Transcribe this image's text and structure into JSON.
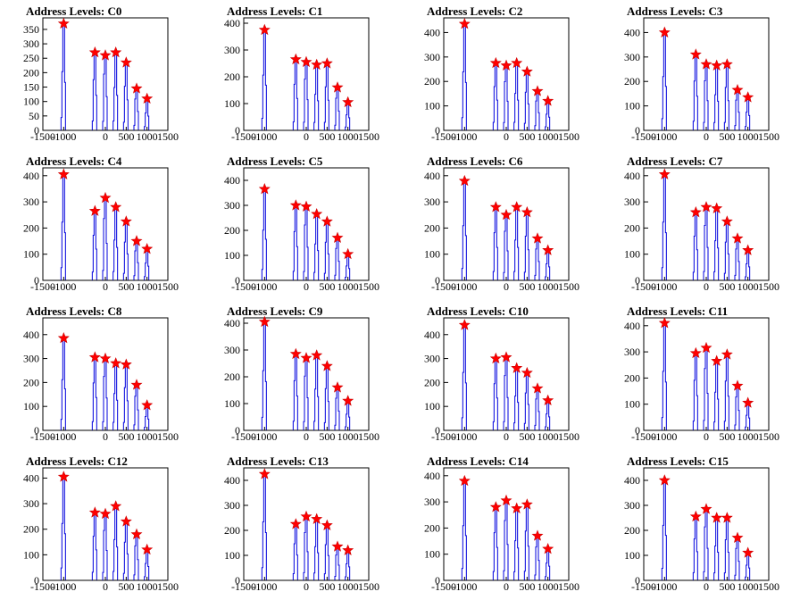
{
  "figure": {
    "background": "#ffffff"
  },
  "style": {
    "histogram_color": "#0000dd",
    "marker_color": "#ff0000",
    "marker_outline": "#cc0000"
  },
  "chart_data": [
    {
      "type": "bar",
      "title": "Address Levels: C0",
      "xlim": [
        -1500,
        1500
      ],
      "ylim": [
        0,
        390
      ],
      "yticks": [
        0,
        50,
        100,
        150,
        200,
        250,
        300,
        350
      ],
      "xticks": [
        -1500,
        -1000,
        0,
        500,
        1000,
        1500
      ],
      "xtick_labels": [
        "-1500",
        "-1000",
        "0",
        "500",
        "1000",
        "1500"
      ],
      "peaks": [
        {
          "x": -1000,
          "y": 370
        },
        {
          "x": -250,
          "y": 270
        },
        {
          "x": 0,
          "y": 260
        },
        {
          "x": 250,
          "y": 270
        },
        {
          "x": 500,
          "y": 235
        },
        {
          "x": 750,
          "y": 145
        },
        {
          "x": 1000,
          "y": 110
        }
      ]
    },
    {
      "type": "bar",
      "title": "Address Levels: C1",
      "xlim": [
        -1500,
        1500
      ],
      "ylim": [
        0,
        420
      ],
      "yticks": [
        0,
        100,
        200,
        300,
        400
      ],
      "xticks": [
        -1500,
        -1000,
        0,
        500,
        1000,
        1500
      ],
      "xtick_labels": [
        "-1500",
        "-1000",
        "0",
        "500",
        "1000",
        "1500"
      ],
      "peaks": [
        {
          "x": -1000,
          "y": 375
        },
        {
          "x": -250,
          "y": 265
        },
        {
          "x": 0,
          "y": 255
        },
        {
          "x": 250,
          "y": 245
        },
        {
          "x": 500,
          "y": 250
        },
        {
          "x": 750,
          "y": 160
        },
        {
          "x": 1000,
          "y": 105
        }
      ]
    },
    {
      "type": "bar",
      "title": "Address Levels: C2",
      "xlim": [
        -1500,
        1500
      ],
      "ylim": [
        0,
        460
      ],
      "yticks": [
        0,
        100,
        200,
        300,
        400
      ],
      "xticks": [
        -1500,
        -1000,
        0,
        500,
        1000,
        1500
      ],
      "xtick_labels": [
        "-1500",
        "-1000",
        "0",
        "500",
        "1000",
        "1500"
      ],
      "peaks": [
        {
          "x": -1000,
          "y": 435
        },
        {
          "x": -250,
          "y": 275
        },
        {
          "x": 0,
          "y": 265
        },
        {
          "x": 250,
          "y": 275
        },
        {
          "x": 500,
          "y": 240
        },
        {
          "x": 750,
          "y": 160
        },
        {
          "x": 1000,
          "y": 120
        }
      ]
    },
    {
      "type": "bar",
      "title": "Address Levels: C3",
      "xlim": [
        -1500,
        1500
      ],
      "ylim": [
        0,
        460
      ],
      "yticks": [
        0,
        100,
        200,
        300,
        400
      ],
      "xticks": [
        -1500,
        -1000,
        0,
        500,
        1000,
        1500
      ],
      "xtick_labels": [
        "-1500",
        "-1000",
        "0",
        "500",
        "1000",
        "1500"
      ],
      "peaks": [
        {
          "x": -1000,
          "y": 400
        },
        {
          "x": -250,
          "y": 310
        },
        {
          "x": 0,
          "y": 270
        },
        {
          "x": 250,
          "y": 265
        },
        {
          "x": 500,
          "y": 270
        },
        {
          "x": 750,
          "y": 165
        },
        {
          "x": 1000,
          "y": 135
        }
      ]
    },
    {
      "type": "bar",
      "title": "Address Levels: C4",
      "xlim": [
        -1500,
        1500
      ],
      "ylim": [
        0,
        430
      ],
      "yticks": [
        0,
        100,
        200,
        300,
        400
      ],
      "xticks": [
        -1500,
        -1000,
        0,
        500,
        1000,
        1500
      ],
      "xtick_labels": [
        "-1500",
        "-1000",
        "0",
        "500",
        "1000",
        "1500"
      ],
      "peaks": [
        {
          "x": -1000,
          "y": 405
        },
        {
          "x": -250,
          "y": 265
        },
        {
          "x": 0,
          "y": 315
        },
        {
          "x": 250,
          "y": 280
        },
        {
          "x": 500,
          "y": 225
        },
        {
          "x": 750,
          "y": 150
        },
        {
          "x": 1000,
          "y": 120
        }
      ]
    },
    {
      "type": "bar",
      "title": "Address Levels: C5",
      "xlim": [
        -1500,
        1500
      ],
      "ylim": [
        0,
        450
      ],
      "yticks": [
        0,
        100,
        200,
        300,
        400
      ],
      "xticks": [
        -1500,
        -1000,
        0,
        500,
        1000,
        1500
      ],
      "xtick_labels": [
        "-1500",
        "-1000",
        "0",
        "500",
        "1000",
        "1500"
      ],
      "peaks": [
        {
          "x": -1000,
          "y": 365
        },
        {
          "x": -250,
          "y": 300
        },
        {
          "x": 0,
          "y": 295
        },
        {
          "x": 250,
          "y": 265
        },
        {
          "x": 500,
          "y": 235
        },
        {
          "x": 750,
          "y": 170
        },
        {
          "x": 1000,
          "y": 105
        }
      ]
    },
    {
      "type": "bar",
      "title": "Address Levels: C6",
      "xlim": [
        -1500,
        1500
      ],
      "ylim": [
        0,
        430
      ],
      "yticks": [
        0,
        100,
        200,
        300,
        400
      ],
      "xticks": [
        -1500,
        -1000,
        0,
        500,
        1000,
        1500
      ],
      "xtick_labels": [
        "-1500",
        "-1000",
        "0",
        "500",
        "1000",
        "1500"
      ],
      "peaks": [
        {
          "x": -1000,
          "y": 380
        },
        {
          "x": -250,
          "y": 280
        },
        {
          "x": 0,
          "y": 250
        },
        {
          "x": 250,
          "y": 280
        },
        {
          "x": 500,
          "y": 260
        },
        {
          "x": 750,
          "y": 160
        },
        {
          "x": 1000,
          "y": 115
        }
      ]
    },
    {
      "type": "bar",
      "title": "Address Levels: C7",
      "xlim": [
        -1500,
        1500
      ],
      "ylim": [
        0,
        430
      ],
      "yticks": [
        0,
        100,
        200,
        300,
        400
      ],
      "xticks": [
        -1500,
        -1000,
        0,
        500,
        1000,
        1500
      ],
      "xtick_labels": [
        "-1500",
        "-1000",
        "0",
        "500",
        "1000",
        "1500"
      ],
      "peaks": [
        {
          "x": -1000,
          "y": 405
        },
        {
          "x": -250,
          "y": 260
        },
        {
          "x": 0,
          "y": 280
        },
        {
          "x": 250,
          "y": 275
        },
        {
          "x": 500,
          "y": 225
        },
        {
          "x": 750,
          "y": 160
        },
        {
          "x": 1000,
          "y": 115
        }
      ]
    },
    {
      "type": "bar",
      "title": "Address Levels: C8",
      "xlim": [
        -1500,
        1500
      ],
      "ylim": [
        0,
        470
      ],
      "yticks": [
        0,
        100,
        200,
        300,
        400
      ],
      "xticks": [
        -1500,
        -1000,
        0,
        500,
        1000,
        1500
      ],
      "xtick_labels": [
        "-1500",
        "-1000",
        "0",
        "500",
        "1000",
        "1500"
      ],
      "peaks": [
        {
          "x": -1000,
          "y": 385
        },
        {
          "x": -250,
          "y": 305
        },
        {
          "x": 0,
          "y": 300
        },
        {
          "x": 250,
          "y": 280
        },
        {
          "x": 500,
          "y": 275
        },
        {
          "x": 750,
          "y": 190
        },
        {
          "x": 1000,
          "y": 105
        }
      ]
    },
    {
      "type": "bar",
      "title": "Address Levels: C9",
      "xlim": [
        -1500,
        1500
      ],
      "ylim": [
        0,
        420
      ],
      "yticks": [
        0,
        100,
        200,
        300,
        400
      ],
      "xticks": [
        -1500,
        -1000,
        0,
        500,
        1000,
        1500
      ],
      "xtick_labels": [
        "-1500",
        "-1000",
        "0",
        "500",
        "1000",
        "1500"
      ],
      "peaks": [
        {
          "x": -1000,
          "y": 405
        },
        {
          "x": -250,
          "y": 285
        },
        {
          "x": 0,
          "y": 270
        },
        {
          "x": 250,
          "y": 280
        },
        {
          "x": 500,
          "y": 240
        },
        {
          "x": 750,
          "y": 160
        },
        {
          "x": 1000,
          "y": 110
        }
      ]
    },
    {
      "type": "bar",
      "title": "Address Levels: C10",
      "xlim": [
        -1500,
        1500
      ],
      "ylim": [
        0,
        470
      ],
      "yticks": [
        0,
        100,
        200,
        300,
        400
      ],
      "xticks": [
        -1500,
        -1000,
        0,
        500,
        1000,
        1500
      ],
      "xtick_labels": [
        "-1500",
        "-1000",
        "0",
        "500",
        "1000",
        "1500"
      ],
      "peaks": [
        {
          "x": -1000,
          "y": 440
        },
        {
          "x": -250,
          "y": 300
        },
        {
          "x": 0,
          "y": 305
        },
        {
          "x": 250,
          "y": 260
        },
        {
          "x": 500,
          "y": 240
        },
        {
          "x": 750,
          "y": 175
        },
        {
          "x": 1000,
          "y": 125
        }
      ]
    },
    {
      "type": "bar",
      "title": "Address Levels: C11",
      "xlim": [
        -1500,
        1500
      ],
      "ylim": [
        0,
        430
      ],
      "yticks": [
        0,
        100,
        200,
        300,
        400
      ],
      "xticks": [
        -1500,
        -1000,
        0,
        500,
        1000,
        1500
      ],
      "xtick_labels": [
        "-1500",
        "-1000",
        "0",
        "500",
        "1000",
        "1500"
      ],
      "peaks": [
        {
          "x": -1000,
          "y": 410
        },
        {
          "x": -250,
          "y": 295
        },
        {
          "x": 0,
          "y": 315
        },
        {
          "x": 250,
          "y": 265
        },
        {
          "x": 500,
          "y": 290
        },
        {
          "x": 750,
          "y": 170
        },
        {
          "x": 1000,
          "y": 105
        }
      ]
    },
    {
      "type": "bar",
      "title": "Address Levels: C12",
      "xlim": [
        -1500,
        1500
      ],
      "ylim": [
        0,
        440
      ],
      "yticks": [
        0,
        100,
        200,
        300,
        400
      ],
      "xticks": [
        -1500,
        -1000,
        0,
        500,
        1000,
        1500
      ],
      "xtick_labels": [
        "-1500",
        "-1000",
        "0",
        "500",
        "1000",
        "1500"
      ],
      "peaks": [
        {
          "x": -1000,
          "y": 405
        },
        {
          "x": -250,
          "y": 265
        },
        {
          "x": 0,
          "y": 260
        },
        {
          "x": 250,
          "y": 290
        },
        {
          "x": 500,
          "y": 230
        },
        {
          "x": 750,
          "y": 180
        },
        {
          "x": 1000,
          "y": 120
        }
      ]
    },
    {
      "type": "bar",
      "title": "Address Levels: C13",
      "xlim": [
        -1500,
        1500
      ],
      "ylim": [
        0,
        450
      ],
      "yticks": [
        0,
        100,
        200,
        300,
        400
      ],
      "xticks": [
        -1500,
        -1000,
        0,
        500,
        1000,
        1500
      ],
      "xtick_labels": [
        "-1500",
        "-1000",
        "0",
        "500",
        "1000",
        "1500"
      ],
      "peaks": [
        {
          "x": -1000,
          "y": 425
        },
        {
          "x": -250,
          "y": 225
        },
        {
          "x": 0,
          "y": 255
        },
        {
          "x": 250,
          "y": 245
        },
        {
          "x": 500,
          "y": 220
        },
        {
          "x": 750,
          "y": 135
        },
        {
          "x": 1000,
          "y": 120
        }
      ]
    },
    {
      "type": "bar",
      "title": "Address Levels: C14",
      "xlim": [
        -1500,
        1500
      ],
      "ylim": [
        0,
        430
      ],
      "yticks": [
        0,
        100,
        200,
        300,
        400
      ],
      "xticks": [
        -1500,
        -1000,
        0,
        500,
        1000,
        1500
      ],
      "xtick_labels": [
        "-1500",
        "-1000",
        "0",
        "500",
        "1000",
        "1500"
      ],
      "peaks": [
        {
          "x": -1000,
          "y": 380
        },
        {
          "x": -250,
          "y": 280
        },
        {
          "x": 0,
          "y": 305
        },
        {
          "x": 250,
          "y": 275
        },
        {
          "x": 500,
          "y": 290
        },
        {
          "x": 750,
          "y": 170
        },
        {
          "x": 1000,
          "y": 120
        }
      ]
    },
    {
      "type": "bar",
      "title": "Address Levels: C15",
      "xlim": [
        -1500,
        1500
      ],
      "ylim": [
        0,
        450
      ],
      "yticks": [
        0,
        100,
        200,
        300,
        400
      ],
      "xticks": [
        -1500,
        -1000,
        0,
        500,
        1000,
        1500
      ],
      "xtick_labels": [
        "-1500",
        "-1000",
        "0",
        "500",
        "1000",
        "1500"
      ],
      "peaks": [
        {
          "x": -1000,
          "y": 400
        },
        {
          "x": -250,
          "y": 255
        },
        {
          "x": 0,
          "y": 285
        },
        {
          "x": 250,
          "y": 250
        },
        {
          "x": 500,
          "y": 250
        },
        {
          "x": 750,
          "y": 170
        },
        {
          "x": 1000,
          "y": 110
        }
      ]
    }
  ]
}
